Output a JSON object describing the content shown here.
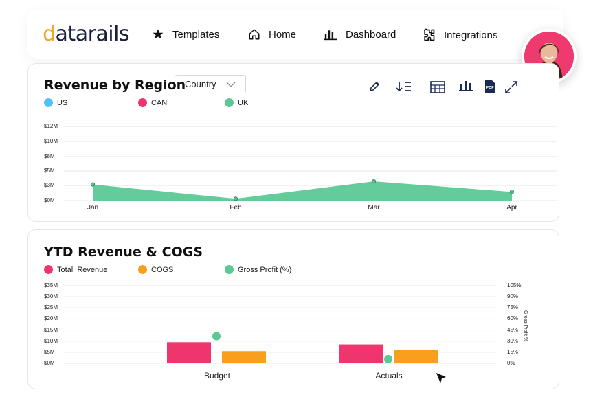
{
  "nav": {
    "logo": {
      "prefix": "d",
      "rest": "atarails"
    },
    "items": [
      {
        "label": "Templates",
        "icon": "star-icon"
      },
      {
        "label": "Home",
        "icon": "home-icon"
      },
      {
        "label": "Dashboard",
        "icon": "bar-chart-icon"
      },
      {
        "label": "Integrations",
        "icon": "puzzle-icon"
      }
    ]
  },
  "revenue_card": {
    "title": "Revenue by Region",
    "select_value": "Country",
    "legend": [
      {
        "label": "US",
        "color": "#4fc3f7"
      },
      {
        "label": "CAN",
        "color": "#f0346e"
      },
      {
        "label": "UK",
        "color": "#5cc896"
      }
    ],
    "y_ticks": [
      "$12M",
      "$10M",
      "$8M",
      "$5M",
      "$3M",
      "$0M"
    ],
    "tools": [
      "pencil-icon",
      "sort-icon",
      "table-icon",
      "bar-chart-icon",
      "pdf-icon",
      "expand-icon"
    ],
    "pdf_text": "PDF"
  },
  "ytd_card": {
    "title": "YTD Revenue & COGS",
    "legend": [
      {
        "label": "Total  Revenue",
        "color": "#f0346e"
      },
      {
        "label": "COGS",
        "color": "#f8a01b"
      },
      {
        "label": "Gross Profit (%)",
        "color": "#5cc896"
      }
    ],
    "y_ticks_left": [
      "$35M",
      "$30M",
      "$25M",
      "$20M",
      "$15M",
      "$10M",
      "$5M",
      "$0M"
    ],
    "y_ticks_right": [
      "105%",
      "90%",
      "75%",
      "60%",
      "45%",
      "30%",
      "15%",
      "0%"
    ],
    "right_axis_label": "Gross Profit %"
  },
  "chart_data": [
    {
      "type": "area",
      "title": "Revenue by Region",
      "x": [
        "Jan",
        "Feb",
        "Mar",
        "Apr"
      ],
      "series": [
        {
          "name": "UK",
          "values": [
            2.6,
            0.3,
            3.1,
            1.4
          ]
        }
      ],
      "ylim": [
        0,
        12
      ],
      "y_ticks": [
        0,
        2.5,
        5,
        7.5,
        10,
        12.5
      ],
      "color": "#5cc896",
      "legend_placement": "top-left",
      "grid": true
    },
    {
      "type": "bar",
      "title": "YTD Revenue & COGS",
      "categories": [
        "Budget",
        "Actuals"
      ],
      "series": [
        {
          "name": "Total  Revenue",
          "values": [
            9.5,
            8.5
          ],
          "color": "#f0346e"
        },
        {
          "name": "COGS",
          "values": [
            5.5,
            6.0
          ],
          "color": "#f8a01b"
        },
        {
          "name": "Gross Profit (%)",
          "values": [
            33,
            2
          ],
          "color": "#5cc896",
          "axis": "right"
        }
      ],
      "ylim": [
        0,
        35
      ],
      "ylim_right": [
        0,
        105
      ],
      "legend_placement": "top-left",
      "grid": true
    }
  ]
}
